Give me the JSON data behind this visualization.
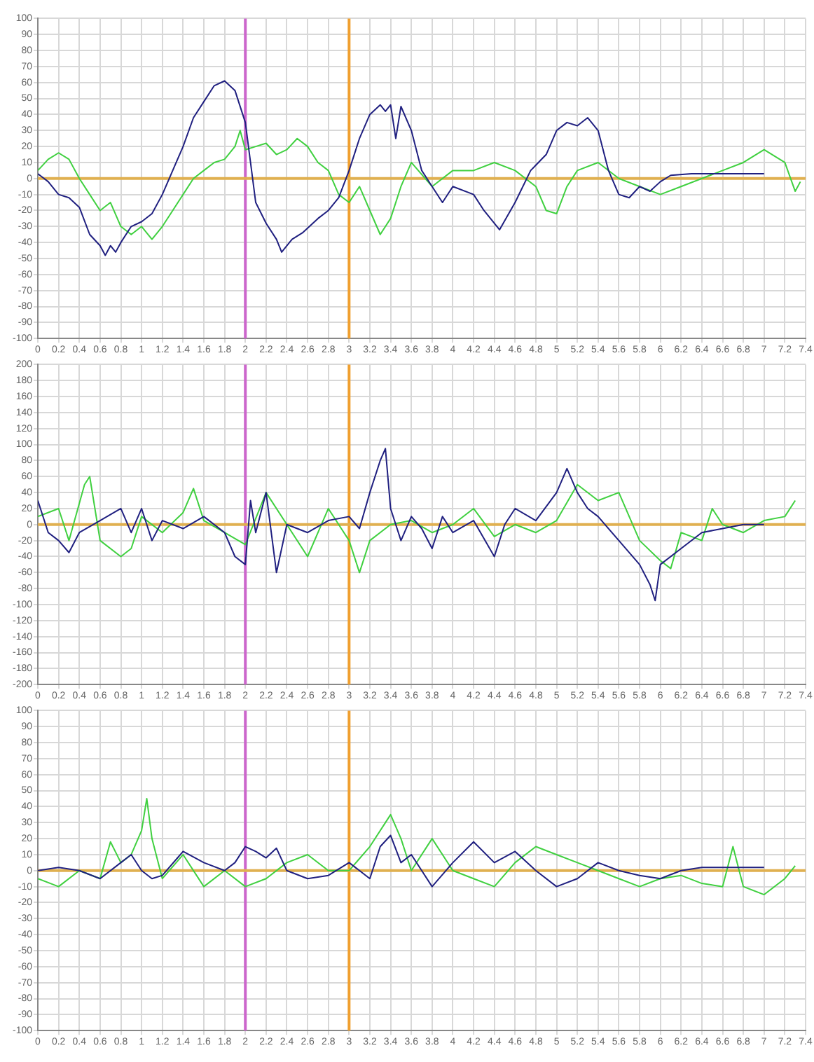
{
  "chart_data": [
    {
      "type": "line",
      "grid": true,
      "legend": false,
      "marker": "none",
      "line_style": "solid",
      "xlim": [
        0,
        7.4
      ],
      "ylim": [
        -100,
        100
      ],
      "xticks": [
        0,
        0.2,
        0.4,
        0.6,
        0.8,
        1,
        1.2,
        1.4,
        1.6,
        1.8,
        2,
        2.2,
        2.4,
        2.6,
        2.8,
        3,
        3.2,
        3.4,
        3.6,
        3.8,
        4,
        4.2,
        4.4,
        4.6,
        4.8,
        5,
        5.2,
        5.4,
        5.6,
        5.8,
        6,
        6.2,
        6.4,
        6.6,
        6.8,
        7,
        7.2,
        7.4
      ],
      "yticks": [
        -100,
        -90,
        -80,
        -70,
        -60,
        -50,
        -40,
        -30,
        -20,
        -10,
        0,
        10,
        20,
        30,
        40,
        50,
        60,
        70,
        80,
        90,
        100
      ],
      "ref_lines": [
        {
          "axis": "x",
          "value": 2,
          "color": "#cc66cc"
        },
        {
          "axis": "x",
          "value": 3,
          "color": "#f0a030"
        },
        {
          "axis": "y",
          "value": 0,
          "color": "#e0b050"
        }
      ],
      "series": [
        {
          "color": "#202080",
          "x": [
            0,
            0.1,
            0.2,
            0.3,
            0.4,
            0.5,
            0.6,
            0.65,
            0.7,
            0.75,
            0.8,
            0.9,
            1,
            1.1,
            1.2,
            1.3,
            1.4,
            1.5,
            1.6,
            1.7,
            1.8,
            1.9,
            2,
            2.05,
            2.1,
            2.2,
            2.3,
            2.35,
            2.45,
            2.55,
            2.7,
            2.8,
            2.9,
            3,
            3.1,
            3.2,
            3.3,
            3.35,
            3.4,
            3.45,
            3.5,
            3.6,
            3.7,
            3.8,
            3.9,
            4,
            4.2,
            4.3,
            4.45,
            4.6,
            4.75,
            4.9,
            5,
            5.1,
            5.2,
            5.3,
            5.4,
            5.5,
            5.6,
            5.7,
            5.8,
            5.9,
            6,
            6.1,
            6.3,
            6.6,
            7
          ],
          "values": [
            3,
            -2,
            -10,
            -12,
            -18,
            -35,
            -42,
            -48,
            -42,
            -46,
            -40,
            -30,
            -27,
            -22,
            -10,
            5,
            20,
            38,
            48,
            58,
            61,
            55,
            35,
            10,
            -15,
            -28,
            -38,
            -46,
            -38,
            -34,
            -25,
            -20,
            -12,
            5,
            25,
            40,
            46,
            42,
            46,
            25,
            45,
            30,
            5,
            -5,
            -15,
            -5,
            -10,
            -20,
            -32,
            -15,
            5,
            15,
            30,
            35,
            33,
            38,
            30,
            5,
            -10,
            -12,
            -5,
            -8,
            -2,
            2,
            3,
            3,
            3
          ]
        },
        {
          "color": "#40d040",
          "x": [
            0,
            0.1,
            0.2,
            0.3,
            0.4,
            0.5,
            0.6,
            0.7,
            0.8,
            0.9,
            1,
            1.1,
            1.2,
            1.3,
            1.4,
            1.5,
            1.6,
            1.7,
            1.8,
            1.9,
            1.95,
            2,
            2.1,
            2.2,
            2.3,
            2.4,
            2.5,
            2.6,
            2.7,
            2.8,
            2.9,
            3,
            3.1,
            3.2,
            3.3,
            3.4,
            3.5,
            3.6,
            3.8,
            4,
            4.2,
            4.4,
            4.6,
            4.8,
            4.9,
            5,
            5.1,
            5.2,
            5.4,
            5.6,
            5.8,
            6,
            6.2,
            6.4,
            6.6,
            6.8,
            7,
            7.2,
            7.3,
            7.35
          ],
          "values": [
            5,
            12,
            16,
            12,
            0,
            -10,
            -20,
            -15,
            -30,
            -35,
            -30,
            -38,
            -30,
            -20,
            -10,
            0,
            5,
            10,
            12,
            20,
            30,
            18,
            20,
            22,
            15,
            18,
            25,
            20,
            10,
            5,
            -10,
            -15,
            -5,
            -20,
            -35,
            -25,
            -5,
            10,
            -5,
            5,
            5,
            10,
            5,
            -5,
            -20,
            -22,
            -5,
            5,
            10,
            0,
            -5,
            -10,
            -5,
            0,
            5,
            10,
            18,
            10,
            -8,
            -2
          ]
        }
      ]
    },
    {
      "type": "line",
      "grid": true,
      "legend": false,
      "marker": "none",
      "line_style": "solid",
      "xlim": [
        0,
        7.4
      ],
      "ylim": [
        -200,
        200
      ],
      "xticks": [
        0,
        0.2,
        0.4,
        0.6,
        0.8,
        1,
        1.2,
        1.4,
        1.6,
        1.8,
        2,
        2.2,
        2.4,
        2.6,
        2.8,
        3,
        3.2,
        3.4,
        3.6,
        3.8,
        4,
        4.2,
        4.4,
        4.6,
        4.8,
        5,
        5.2,
        5.4,
        5.6,
        5.8,
        6,
        6.2,
        6.4,
        6.6,
        6.8,
        7,
        7.2,
        7.4
      ],
      "yticks": [
        -200,
        -180,
        -160,
        -140,
        -120,
        -100,
        -80,
        -60,
        -40,
        -20,
        0,
        20,
        40,
        60,
        80,
        100,
        120,
        140,
        160,
        180,
        200
      ],
      "ref_lines": [
        {
          "axis": "x",
          "value": 2,
          "color": "#cc66cc"
        },
        {
          "axis": "x",
          "value": 3,
          "color": "#f0a030"
        },
        {
          "axis": "y",
          "value": 0,
          "color": "#e0b050"
        }
      ],
      "series": [
        {
          "color": "#202080",
          "x": [
            0,
            0.1,
            0.2,
            0.3,
            0.4,
            0.6,
            0.8,
            0.9,
            1,
            1.1,
            1.2,
            1.4,
            1.6,
            1.8,
            1.9,
            2,
            2.05,
            2.1,
            2.2,
            2.3,
            2.4,
            2.6,
            2.8,
            3,
            3.1,
            3.2,
            3.3,
            3.35,
            3.4,
            3.5,
            3.6,
            3.7,
            3.8,
            3.9,
            4,
            4.2,
            4.4,
            4.5,
            4.6,
            4.8,
            5,
            5.1,
            5.2,
            5.3,
            5.4,
            5.6,
            5.8,
            5.9,
            5.95,
            6,
            6.2,
            6.4,
            6.6,
            6.8,
            7
          ],
          "values": [
            30,
            -10,
            -20,
            -35,
            -10,
            5,
            20,
            -10,
            20,
            -20,
            5,
            -5,
            10,
            -10,
            -40,
            -50,
            30,
            -10,
            40,
            -60,
            0,
            -10,
            5,
            10,
            -5,
            40,
            80,
            95,
            20,
            -20,
            10,
            -5,
            -30,
            10,
            -10,
            5,
            -40,
            0,
            20,
            5,
            40,
            70,
            40,
            20,
            10,
            -20,
            -50,
            -75,
            -95,
            -50,
            -30,
            -10,
            -5,
            0,
            0
          ]
        },
        {
          "color": "#40d040",
          "x": [
            0,
            0.2,
            0.3,
            0.45,
            0.5,
            0.6,
            0.8,
            0.9,
            1,
            1.2,
            1.4,
            1.5,
            1.6,
            1.8,
            2,
            2.2,
            2.4,
            2.6,
            2.8,
            3,
            3.1,
            3.2,
            3.4,
            3.6,
            3.8,
            4,
            4.2,
            4.4,
            4.6,
            4.8,
            5,
            5.2,
            5.4,
            5.6,
            5.8,
            6,
            6.1,
            6.2,
            6.4,
            6.5,
            6.6,
            6.8,
            7,
            7.2,
            7.3
          ],
          "values": [
            10,
            20,
            -20,
            50,
            60,
            -20,
            -40,
            -30,
            10,
            -10,
            15,
            45,
            5,
            -10,
            -25,
            40,
            0,
            -40,
            20,
            -20,
            -60,
            -20,
            0,
            5,
            -10,
            0,
            20,
            -15,
            0,
            -10,
            5,
            50,
            30,
            40,
            -20,
            -45,
            -55,
            -10,
            -20,
            20,
            0,
            -10,
            5,
            10,
            30
          ]
        }
      ]
    },
    {
      "type": "line",
      "grid": true,
      "legend": false,
      "marker": "none",
      "line_style": "solid",
      "xlim": [
        0,
        7.4
      ],
      "ylim": [
        -100,
        100
      ],
      "xticks": [
        0,
        0.2,
        0.4,
        0.6,
        0.8,
        1,
        1.2,
        1.4,
        1.6,
        1.8,
        2,
        2.2,
        2.4,
        2.6,
        2.8,
        3,
        3.2,
        3.4,
        3.6,
        3.8,
        4,
        4.2,
        4.4,
        4.6,
        4.8,
        5,
        5.2,
        5.4,
        5.6,
        5.8,
        6,
        6.2,
        6.4,
        6.6,
        6.8,
        7,
        7.2,
        7.4
      ],
      "yticks": [
        -100,
        -90,
        -80,
        -70,
        -60,
        -50,
        -40,
        -30,
        -20,
        -10,
        0,
        10,
        20,
        30,
        40,
        50,
        60,
        70,
        80,
        90,
        100
      ],
      "ref_lines": [
        {
          "axis": "x",
          "value": 2,
          "color": "#cc66cc"
        },
        {
          "axis": "x",
          "value": 3,
          "color": "#f0a030"
        },
        {
          "axis": "y",
          "value": 0,
          "color": "#e0b050"
        }
      ],
      "series": [
        {
          "color": "#202080",
          "x": [
            0,
            0.2,
            0.4,
            0.6,
            0.8,
            0.9,
            1,
            1.1,
            1.2,
            1.4,
            1.6,
            1.8,
            1.9,
            2,
            2.1,
            2.2,
            2.3,
            2.4,
            2.6,
            2.8,
            3,
            3.2,
            3.3,
            3.4,
            3.5,
            3.6,
            3.7,
            3.8,
            4,
            4.2,
            4.4,
            4.6,
            4.8,
            5,
            5.2,
            5.4,
            5.6,
            5.8,
            6,
            6.2,
            6.4,
            6.6,
            7
          ],
          "values": [
            0,
            2,
            0,
            -5,
            5,
            10,
            0,
            -5,
            -3,
            12,
            5,
            0,
            5,
            15,
            12,
            8,
            14,
            0,
            -5,
            -3,
            5,
            -5,
            15,
            22,
            5,
            10,
            0,
            -10,
            5,
            18,
            5,
            12,
            0,
            -10,
            -5,
            5,
            0,
            -3,
            -5,
            0,
            2,
            2,
            2
          ]
        },
        {
          "color": "#40d040",
          "x": [
            0,
            0.2,
            0.4,
            0.6,
            0.7,
            0.8,
            0.9,
            1,
            1.05,
            1.1,
            1.2,
            1.4,
            1.6,
            1.8,
            2,
            2.2,
            2.4,
            2.6,
            2.8,
            3,
            3.2,
            3.4,
            3.5,
            3.6,
            3.8,
            4,
            4.2,
            4.4,
            4.6,
            4.8,
            5,
            5.2,
            5.4,
            5.6,
            5.8,
            6,
            6.2,
            6.4,
            6.6,
            6.7,
            6.8,
            7,
            7.2,
            7.3
          ],
          "values": [
            -5,
            -10,
            0,
            -5,
            18,
            5,
            10,
            25,
            45,
            20,
            -5,
            10,
            -10,
            0,
            -10,
            -5,
            5,
            10,
            0,
            0,
            15,
            35,
            20,
            0,
            20,
            0,
            -5,
            -10,
            5,
            15,
            10,
            5,
            0,
            -5,
            -10,
            -5,
            -3,
            -8,
            -10,
            15,
            -10,
            -15,
            -5,
            3
          ]
        }
      ]
    }
  ]
}
